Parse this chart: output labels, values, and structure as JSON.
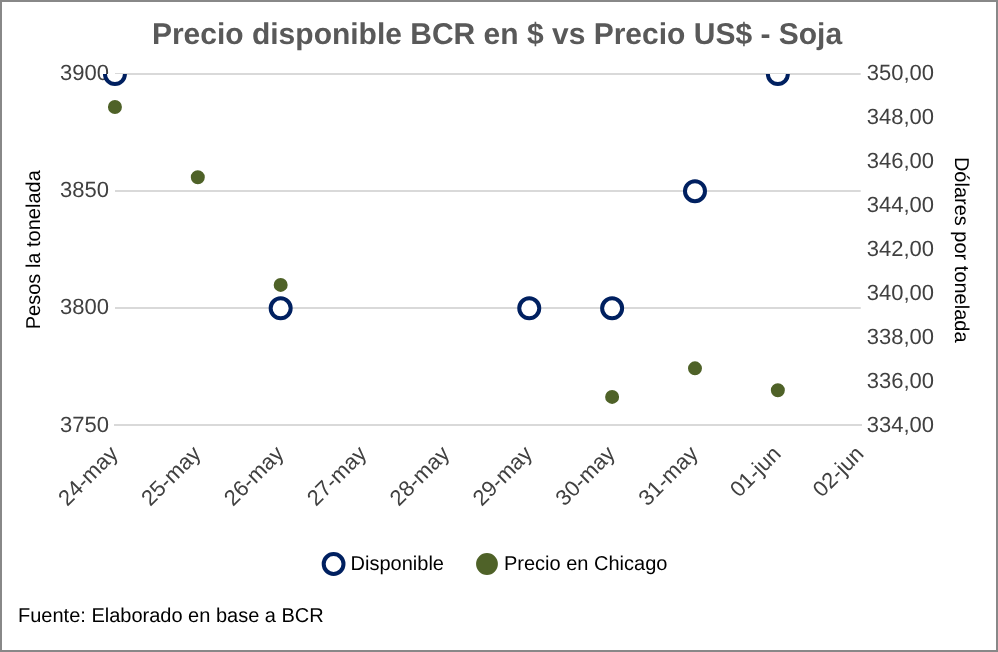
{
  "chart_data": {
    "type": "scatter",
    "title": "Precio disponible BCR en $ vs Precio US$ - Soja",
    "ylabel": "Pesos la tonelada",
    "y2label": "Dólares por tonelada",
    "categories": [
      "24-may",
      "25-may",
      "26-may",
      "27-may",
      "28-may",
      "29-may",
      "30-may",
      "31-may",
      "01-jun",
      "02-jun"
    ],
    "series": [
      {
        "name": "Disponible",
        "color": "#002060",
        "values": [
          3900,
          null,
          3800,
          null,
          null,
          3800,
          3800,
          3850,
          3900,
          null
        ]
      },
      {
        "name": "Precio en Chicago",
        "color": "#4f6228",
        "axis": "y2",
        "values": [
          348.5,
          345.3,
          340.4,
          null,
          null,
          null,
          335.3,
          336.6,
          335.6,
          null
        ]
      }
    ],
    "ylim": [
      3750,
      3900
    ],
    "yticks": [
      3750,
      3800,
      3850,
      3900
    ],
    "y2lim": [
      334,
      350
    ],
    "y2ticks": [
      {
        "value": 334,
        "label": "334,00"
      },
      {
        "value": 336,
        "label": "336,00"
      },
      {
        "value": 338,
        "label": "338,00"
      },
      {
        "value": 340,
        "label": "340,00"
      },
      {
        "value": 342,
        "label": "342,00"
      },
      {
        "value": 344,
        "label": "344,00"
      },
      {
        "value": 346,
        "label": "346,00"
      },
      {
        "value": 348,
        "label": "348,00"
      },
      {
        "value": 350,
        "label": "350,00"
      }
    ],
    "grid": "y",
    "legend": "bottom",
    "marker": "circle",
    "annotations": [
      "Fuente: Elaborado en base a BCR"
    ]
  }
}
